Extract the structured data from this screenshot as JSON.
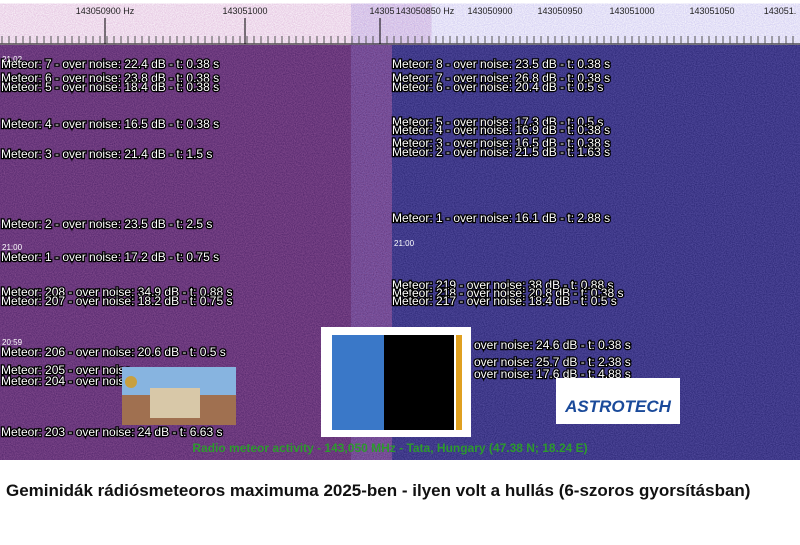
{
  "axis_left": [
    "143050900 Hz",
    "143051000",
    "14305"
  ],
  "axis_right": [
    "143050850 Hz",
    "143050900",
    "143050950",
    "143051000",
    "143051050",
    "143051."
  ],
  "left_panel": {
    "times": [
      "21:02",
      "21:00",
      "20:59"
    ],
    "meteors": [
      "Meteor: 7 - over noise: 22.4 dB - t: 0.38 s",
      "Meteor: 6 - over noise: 23.8 dB - t: 0.38 s",
      "Meteor: 5 - over noise: 18.4 dB - t: 0.38 s",
      "Meteor: 4 - over noise: 16.5 dB - t: 0.38 s",
      "Meteor: 3 - over noise: 21.4 dB - t: 1.5 s",
      "Meteor: 2 - over noise: 23.5 dB - t: 2.5 s",
      "Meteor: 1 - over noise: 17.2 dB - t: 0.75 s",
      "Meteor: 208 - over noise: 34.9 dB - t: 0.88 s",
      "Meteor: 207 - over noise: 18.2 dB - t: 0.75 s",
      "Meteor: 206 - over noise: 20.6 dB - t: 0.5 s",
      "Meteor: 205 - over noise",
      "Meteor: 204 - over noise",
      "Meteor: 203 - over noise: 24 dB - t: 6.63 s"
    ]
  },
  "right_panel": {
    "times": [
      "21:00"
    ],
    "meteors": [
      "Meteor: 8 - over noise: 23.5 dB - t: 0.38 s",
      "Meteor: 7 - over noise: 26.8 dB - t: 0.38 s",
      "Meteor: 6 - over noise: 20.4 dB - t: 0.5 s",
      "Meteor: 5 - over noise: 17.3 dB - t: 0.5 s",
      "Meteor: 4 - over noise: 16.9 dB - t: 0.38 s",
      "Meteor: 3 - over noise: 16.5 dB - t: 0.38 s",
      "Meteor: 2 - over noise: 21.5 dB - t: 1.63 s",
      "Meteor: 1 - over noise: 16.1 dB - t: 2.88 s",
      "Meteor: 219 - over noise: 38 dB - t: 0.88 s",
      "Meteor: 218 - over noise: 20.8 dB - t: 0.38 s",
      "Meteor: 217 - over noise: 18.4 dB - t: 0.5 s",
      "over noise: 24.6 dB - t: 0.38 s",
      "over noise: 25.7 dB - t: 2.38 s",
      "over noise: 17.6 dB - t: 4.88 s"
    ]
  },
  "station": "Radio meteor activity - 143,050 MHz - Tata, Hungary (47.38 N; 18.24 E)",
  "logo": "ASTROTECH",
  "caption": "Geminidák rádiósmeteoros maximuma 2025-ben - ilyen volt a hullás (6-szoros gyorsításban)"
}
